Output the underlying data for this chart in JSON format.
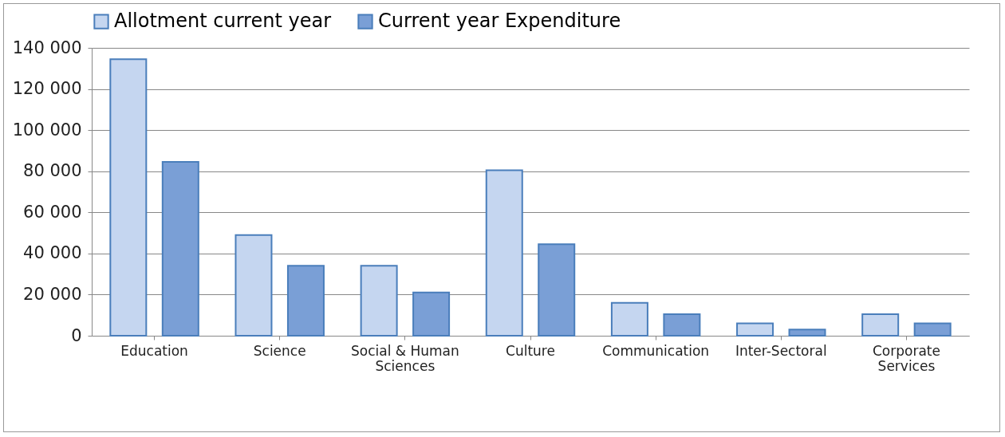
{
  "chart_data": {
    "type": "bar",
    "categories": [
      "Education",
      "Science",
      "Social & Human Sciences",
      "Culture",
      "Communication",
      "Inter-Sectoral",
      "Corporate Services"
    ],
    "series": [
      {
        "name": "Allotment current year",
        "color": "#c5d6f0",
        "values": [
          134500,
          49000,
          34000,
          80500,
          16000,
          6000,
          10500
        ]
      },
      {
        "name": "Current year Expenditure",
        "color": "#7a9fd6",
        "values": [
          84500,
          34000,
          21000,
          44500,
          10500,
          3000,
          6000
        ]
      }
    ],
    "ylim": [
      0,
      140000
    ],
    "yticks": [
      {
        "value": 0,
        "label": "0"
      },
      {
        "value": 20000,
        "label": "20 000"
      },
      {
        "value": 40000,
        "label": "40 000"
      },
      {
        "value": 60000,
        "label": "60 000"
      },
      {
        "value": 80000,
        "label": "80 000"
      },
      {
        "value": 100000,
        "label": "100 000"
      },
      {
        "value": 120000,
        "label": "120 000"
      },
      {
        "value": 140000,
        "label": "140 000"
      }
    ],
    "grid": "y",
    "legend": "top"
  }
}
